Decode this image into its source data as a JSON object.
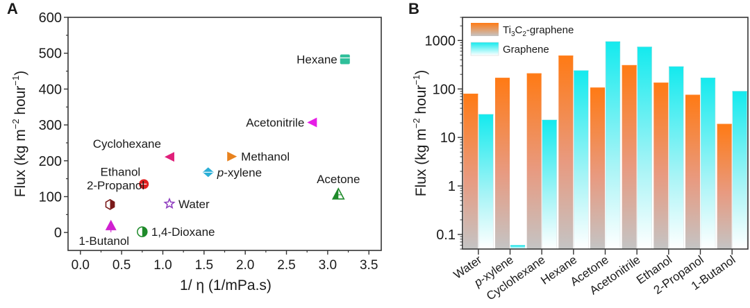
{
  "chart_data": [
    {
      "panel_label": "A",
      "type": "scatter",
      "title": "",
      "xlabel": "1/ η  (1/mPa.s)",
      "ylabel_main": "Flux (kg m",
      "ylabel_sup1": "−2",
      "ylabel_mid": " hour",
      "ylabel_sup2": "−1",
      "ylabel_end": ")",
      "xlim": [
        -0.15,
        3.65
      ],
      "ylim": [
        -50,
        600
      ],
      "xticks": [
        0.0,
        0.5,
        1.0,
        1.5,
        2.0,
        2.5,
        3.0,
        3.5
      ],
      "xtick_labels": [
        "0.0",
        "0.5",
        "1.0",
        "1.5",
        "2.0",
        "2.5",
        "3.0",
        "3.5"
      ],
      "yticks": [
        0,
        100,
        200,
        300,
        400,
        500,
        600
      ],
      "ytick_labels": [
        "0",
        "100",
        "200",
        "300",
        "400",
        "500",
        "600"
      ],
      "grid": false,
      "points": [
        {
          "label": "Hexane",
          "x": 3.21,
          "y": 483,
          "color": "#2fbf9a",
          "marker": "square",
          "label_pos": "left"
        },
        {
          "label": "Acetonitrile",
          "x": 2.81,
          "y": 307,
          "color": "#e61ee6",
          "marker": "triangle-left",
          "label_pos": "left"
        },
        {
          "label": "Methanol",
          "x": 1.84,
          "y": 212,
          "color": "#e8821e",
          "marker": "triangle-right",
          "label_pos": "right"
        },
        {
          "label": "p-xylene",
          "label_italic": "p",
          "label_rest": "-xylene",
          "x": 1.55,
          "y": 168,
          "color": "#2aaed6",
          "marker": "diamond",
          "label_pos": "right"
        },
        {
          "label": "Cyclohexane",
          "x": 1.08,
          "y": 211,
          "color": "#e0207a",
          "marker": "triangle-left",
          "label_pos": "upper-left"
        },
        {
          "label": "Ethanol",
          "x": 0.77,
          "y": 135,
          "color": "#e02020",
          "marker": "circle",
          "label_pos": "upper-left"
        },
        {
          "label": "2-Propanol",
          "x": 0.36,
          "y": 78,
          "color": "#7a1a1a",
          "marker": "hexagon",
          "label_pos": "above"
        },
        {
          "label": "Water",
          "x": 1.08,
          "y": 80,
          "color": "#9040c0",
          "marker": "star",
          "label_pos": "right"
        },
        {
          "label": "1-Butanol",
          "x": 0.37,
          "y": 20,
          "color": "#d020d0",
          "marker": "triangle-up",
          "label_pos": "below"
        },
        {
          "label": "1,4-Dioxane",
          "x": 0.75,
          "y": 2,
          "color": "#1e8a2a",
          "marker": "circle-half",
          "label_pos": "right"
        },
        {
          "label": "Acetone",
          "x": 3.13,
          "y": 107,
          "color": "#1e8a2a",
          "marker": "triangle-up-hatched",
          "label_pos": "above"
        }
      ]
    },
    {
      "panel_label": "B",
      "type": "bar",
      "title": "",
      "xlabel": "",
      "ylabel_main": "Flux (kg m",
      "ylabel_sup1": "−2",
      "ylabel_mid": " hour",
      "ylabel_sup2": "−1",
      "ylabel_end": ")",
      "yscale": "log",
      "ylim": [
        0.05,
        3000
      ],
      "yticks": [
        0.1,
        1,
        10,
        100,
        1000
      ],
      "ytick_labels": [
        "0.1",
        "1",
        "10",
        "100",
        "1000"
      ],
      "grid": false,
      "legend_position": "top-left",
      "categories": [
        "Water",
        "p-xylene",
        "Cyclohexane",
        "Hexane",
        "Acetone",
        "Acetonitrile",
        "Ethanol",
        "2-Propanol",
        "1-Butanol"
      ],
      "category_italic_prefix": [
        "",
        "p",
        "",
        "",
        "",
        "",
        "",
        "",
        ""
      ],
      "category_rest": [
        "Water",
        "-xylene",
        "Cyclohexane",
        "Hexane",
        "Acetone",
        "Acetonitrile",
        "Ethanol",
        "2-Propanol",
        "1-Butanol"
      ],
      "series": [
        {
          "name": "Ti3C2-graphene",
          "legend_main": "Ti",
          "legend_sub1": "3",
          "legend_mid": "C",
          "legend_sub2": "2",
          "legend_end": "-graphene",
          "color_top": "#ff7f1e",
          "color_bottom": "#c4c4c4",
          "values": [
            80,
            170,
            210,
            490,
            107,
            310,
            135,
            76,
            19
          ]
        },
        {
          "name": "Graphene",
          "legend_main": "Graphene",
          "color_top": "#1ee8ec",
          "color_bottom": "#ffffff",
          "values": [
            30,
            0.06,
            23,
            240,
            950,
            740,
            290,
            170,
            90
          ]
        }
      ]
    }
  ]
}
